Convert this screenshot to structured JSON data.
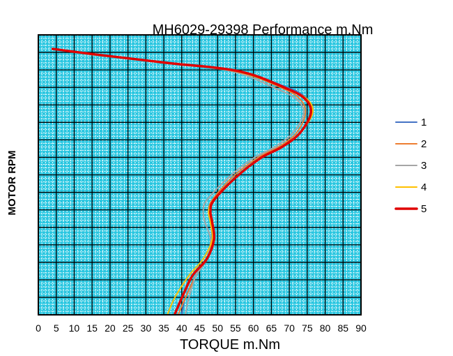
{
  "chart_data": {
    "type": "line",
    "title": "MH6029-29398  Performance m.Nm",
    "xlabel": "TORQUE  m.Nm",
    "ylabel": "MOTOR RPM",
    "xlim": [
      0,
      90
    ],
    "xticks": [
      "0",
      "5",
      "10",
      "15",
      "20",
      "25",
      "30",
      "35",
      "40",
      "45",
      "50",
      "55",
      "60",
      "65",
      "70",
      "75",
      "80",
      "85",
      "90"
    ],
    "grid": true,
    "grid_major_color": "#000000",
    "grid_minor_color": "#ffffff",
    "plot_background": "#29c6e0",
    "legend_position": "right",
    "series": [
      {
        "name": "1",
        "color": "#4472c4",
        "width": 2,
        "points": [
          [
            40,
            0
          ],
          [
            41,
            0.06
          ],
          [
            44,
            0.14
          ],
          [
            47,
            0.2
          ],
          [
            49,
            0.27
          ],
          [
            48.5,
            0.33
          ],
          [
            48,
            0.37
          ],
          [
            49,
            0.41
          ],
          [
            55,
            0.49
          ],
          [
            62,
            0.56
          ],
          [
            68,
            0.6
          ],
          [
            73,
            0.65
          ],
          [
            76,
            0.72
          ],
          [
            75,
            0.77
          ],
          [
            70,
            0.81
          ],
          [
            55,
            0.87
          ],
          [
            35,
            0.9
          ],
          [
            15,
            0.93
          ],
          [
            4,
            0.95
          ]
        ]
      },
      {
        "name": "2",
        "color": "#ed7d31",
        "width": 2,
        "points": [
          [
            39,
            0
          ],
          [
            41,
            0.06
          ],
          [
            44,
            0.14
          ],
          [
            47,
            0.2
          ],
          [
            48.5,
            0.27
          ],
          [
            48,
            0.33
          ],
          [
            47.5,
            0.37
          ],
          [
            48.5,
            0.41
          ],
          [
            54,
            0.49
          ],
          [
            61,
            0.56
          ],
          [
            67,
            0.6
          ],
          [
            72,
            0.65
          ],
          [
            74.5,
            0.72
          ],
          [
            73,
            0.77
          ],
          [
            68,
            0.81
          ],
          [
            55,
            0.87
          ],
          [
            35,
            0.9
          ],
          [
            15,
            0.93
          ],
          [
            4,
            0.95
          ]
        ]
      },
      {
        "name": "3",
        "color": "#a5a5a5",
        "width": 2,
        "points": [
          [
            41,
            0
          ],
          [
            42,
            0.06
          ],
          [
            44,
            0.14
          ],
          [
            47,
            0.2
          ],
          [
            48,
            0.27
          ],
          [
            46.5,
            0.33
          ],
          [
            46,
            0.37
          ],
          [
            47,
            0.41
          ],
          [
            53,
            0.49
          ],
          [
            60,
            0.56
          ],
          [
            66,
            0.6
          ],
          [
            71,
            0.65
          ],
          [
            74,
            0.72
          ],
          [
            72,
            0.77
          ],
          [
            66,
            0.81
          ],
          [
            54,
            0.87
          ],
          [
            35,
            0.9
          ],
          [
            15,
            0.93
          ],
          [
            4,
            0.95
          ]
        ]
      },
      {
        "name": "4",
        "color": "#ffc000",
        "width": 2,
        "points": [
          [
            36,
            0
          ],
          [
            38,
            0.06
          ],
          [
            42,
            0.14
          ],
          [
            46,
            0.2
          ],
          [
            48.5,
            0.27
          ],
          [
            48,
            0.33
          ],
          [
            47.5,
            0.37
          ],
          [
            49,
            0.41
          ],
          [
            55,
            0.49
          ],
          [
            62,
            0.56
          ],
          [
            68,
            0.6
          ],
          [
            73,
            0.65
          ],
          [
            76.5,
            0.72
          ],
          [
            75,
            0.77
          ],
          [
            69,
            0.81
          ],
          [
            55,
            0.87
          ],
          [
            35,
            0.9
          ],
          [
            15,
            0.93
          ],
          [
            4,
            0.95
          ]
        ]
      },
      {
        "name": "5",
        "color": "#e00000",
        "width": 3.5,
        "points": [
          [
            38,
            0
          ],
          [
            40,
            0.06
          ],
          [
            43,
            0.14
          ],
          [
            47,
            0.2
          ],
          [
            49,
            0.27
          ],
          [
            48.5,
            0.33
          ],
          [
            48,
            0.37
          ],
          [
            49,
            0.41
          ],
          [
            55,
            0.49
          ],
          [
            62,
            0.56
          ],
          [
            68,
            0.6
          ],
          [
            73,
            0.65
          ],
          [
            76,
            0.72
          ],
          [
            74.5,
            0.77
          ],
          [
            69,
            0.81
          ],
          [
            56,
            0.87
          ],
          [
            36,
            0.9
          ],
          [
            16,
            0.93
          ],
          [
            4,
            0.95
          ]
        ]
      }
    ]
  }
}
